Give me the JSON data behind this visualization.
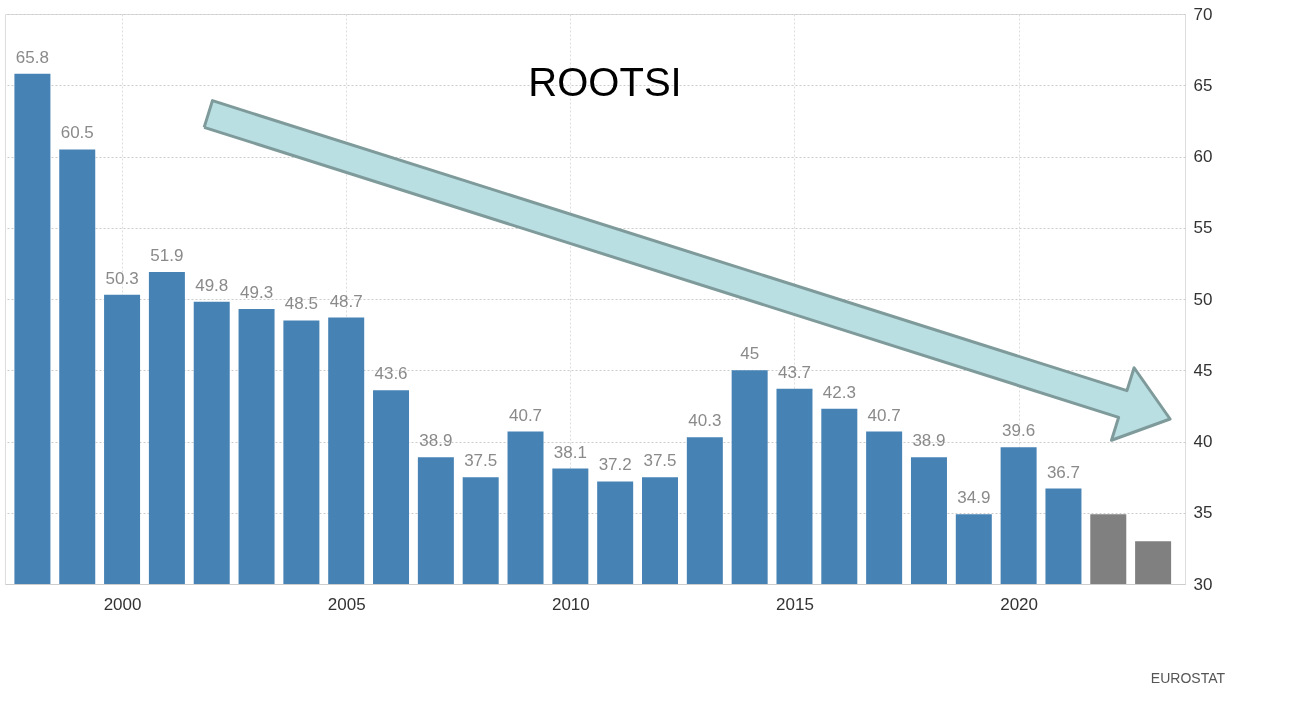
{
  "chart_data": {
    "type": "bar",
    "x": [
      1998,
      1999,
      2000,
      2001,
      2002,
      2003,
      2004,
      2005,
      2006,
      2007,
      2008,
      2009,
      2010,
      2011,
      2012,
      2013,
      2014,
      2015,
      2016,
      2017,
      2018,
      2019,
      2020,
      2021,
      2022,
      2023
    ],
    "values": [
      65.8,
      60.5,
      50.3,
      51.9,
      49.8,
      49.3,
      48.5,
      48.7,
      43.6,
      38.9,
      37.5,
      40.7,
      38.1,
      37.2,
      37.5,
      40.3,
      45,
      43.7,
      42.3,
      40.7,
      38.9,
      34.9,
      39.6,
      36.7,
      34.9,
      33
    ],
    "value_labels": [
      "65.8",
      "60.5",
      "50.3",
      "51.9",
      "49.8",
      "49.3",
      "48.5",
      "48.7",
      "43.6",
      "38.9",
      "37.5",
      "40.7",
      "38.1",
      "37.2",
      "37.5",
      "40.3",
      "45",
      "43.7",
      "42.3",
      "40.7",
      "38.9",
      "34.9",
      "39.6",
      "36.7",
      null,
      null
    ],
    "colors": [
      "#4682b4",
      "#4682b4",
      "#4682b4",
      "#4682b4",
      "#4682b4",
      "#4682b4",
      "#4682b4",
      "#4682b4",
      "#4682b4",
      "#4682b4",
      "#4682b4",
      "#4682b4",
      "#4682b4",
      "#4682b4",
      "#4682b4",
      "#4682b4",
      "#4682b4",
      "#4682b4",
      "#4682b4",
      "#4682b4",
      "#4682b4",
      "#4682b4",
      "#4682b4",
      "#4682b4",
      "#808080",
      "#808080"
    ],
    "xlim": [
      1997.5,
      2023.6
    ],
    "xticks": [
      2000,
      2005,
      2010,
      2015,
      2020
    ],
    "ylim": [
      30,
      70
    ],
    "yticks": [
      30,
      35,
      40,
      45,
      50,
      55,
      60,
      65,
      70
    ],
    "grid": true,
    "annotations": [
      "ROOTSI",
      "EUROSTAT"
    ]
  }
}
